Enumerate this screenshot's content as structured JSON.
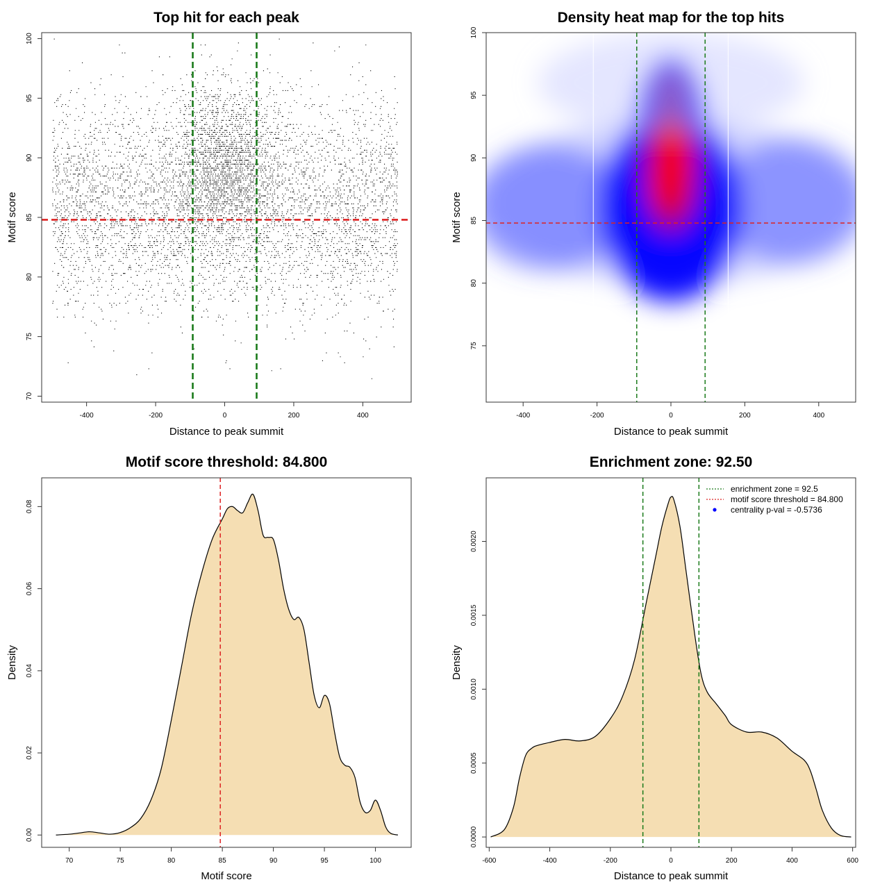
{
  "chart_data": [
    {
      "type": "scatter",
      "title": "Top hit for each peak",
      "xlabel": "Distance to peak summit",
      "ylabel": "Motif score",
      "xlim": [
        -530,
        540
      ],
      "ylim": [
        69.5,
        100.5
      ],
      "xticks": [
        -400,
        -200,
        0,
        200,
        400
      ],
      "yticks": [
        70,
        75,
        80,
        85,
        90,
        95,
        100
      ],
      "xtick_labels": [
        "-400",
        "-200",
        "0",
        "200",
        "400"
      ],
      "ytick_labels": [
        "70",
        "75",
        "80",
        "85",
        "90",
        "95",
        "100"
      ],
      "threshold_line": {
        "axis": "y",
        "value": 84.8,
        "color": "#dd2222",
        "style": "dashed"
      },
      "zone_lines": {
        "axis": "x",
        "values": [
          -92.5,
          92.5
        ],
        "color": "#1a7a1a",
        "style": "dashed"
      },
      "point_color": "#000000",
      "grid": false,
      "points_summary": {
        "count": 7000,
        "x_range": [
          -500,
          500
        ],
        "score_center": 86.5,
        "score_spread": 4.5,
        "central_enrichment": true
      }
    },
    {
      "type": "heatmap",
      "title": "Density heat map for the top hits",
      "xlabel": "Distance to peak summit",
      "ylabel": "Motif score",
      "xlim": [
        -500,
        500
      ],
      "ylim": [
        70.5,
        100
      ],
      "xticks": [
        -400,
        -200,
        0,
        200,
        400
      ],
      "yticks": [
        75,
        80,
        85,
        90,
        95,
        100
      ],
      "xtick_labels": [
        "-400",
        "-200",
        "0",
        "200",
        "400"
      ],
      "ytick_labels": [
        "75",
        "80",
        "85",
        "90",
        "95",
        "100"
      ],
      "threshold_line": {
        "axis": "y",
        "value": 84.8,
        "color": "#dd2222",
        "style": "dashed"
      },
      "zone_lines": {
        "axis": "x",
        "values": [
          -92.5,
          92.5
        ],
        "color": "#1a7a1a",
        "style": "dashed"
      },
      "color_scale": [
        "#ffffff",
        "#0000ff",
        "#ff0000"
      ],
      "grid": false
    },
    {
      "type": "area",
      "title": "Motif score threshold: 84.800",
      "xlabel": "Motif score",
      "ylabel": "Density",
      "xlim": [
        67.3,
        103.5
      ],
      "ylim": [
        -0.003,
        0.087
      ],
      "xticks": [
        70,
        75,
        80,
        85,
        90,
        95,
        100
      ],
      "yticks": [
        0.0,
        0.02,
        0.04,
        0.06,
        0.08
      ],
      "xtick_labels": [
        "70",
        "75",
        "80",
        "85",
        "90",
        "95",
        "100"
      ],
      "ytick_labels": [
        "0.00",
        "0.02",
        "0.04",
        "0.06",
        "0.08"
      ],
      "fill_color": "#f5deb3",
      "threshold_line": {
        "axis": "x",
        "value": 84.8,
        "color": "#dd2222",
        "style": "dashed"
      },
      "x": [
        68.7,
        70,
        71,
        72,
        73,
        74,
        75,
        76,
        77,
        78,
        79,
        80,
        81,
        82,
        83,
        84,
        85,
        85.5,
        86,
        86.5,
        87,
        87.5,
        88,
        88.5,
        89,
        89.5,
        90,
        90.5,
        91,
        91.5,
        92,
        92.5,
        93,
        93.5,
        94,
        94.5,
        95,
        95.5,
        96,
        96.5,
        97,
        97.5,
        98,
        98.5,
        99,
        99.5,
        100,
        100.5,
        101,
        101.5,
        102.2
      ],
      "y": [
        0.0,
        0.0002,
        0.0005,
        0.0008,
        0.0005,
        0.0002,
        0.0006,
        0.0018,
        0.004,
        0.0085,
        0.016,
        0.028,
        0.041,
        0.054,
        0.064,
        0.072,
        0.077,
        0.0795,
        0.08,
        0.079,
        0.0785,
        0.081,
        0.083,
        0.079,
        0.073,
        0.0725,
        0.072,
        0.067,
        0.06,
        0.055,
        0.0525,
        0.053,
        0.05,
        0.042,
        0.034,
        0.031,
        0.034,
        0.032,
        0.025,
        0.019,
        0.017,
        0.0165,
        0.014,
        0.008,
        0.0055,
        0.006,
        0.0085,
        0.006,
        0.002,
        0.0004,
        0.0
      ]
    },
    {
      "type": "area",
      "title": "Enrichment zone: 92.50",
      "xlabel": "Distance to peak summit",
      "ylabel": "Density",
      "xlim": [
        -610,
        610
      ],
      "ylim": [
        -7e-05,
        0.00243
      ],
      "xticks": [
        -600,
        -400,
        -200,
        0,
        200,
        400,
        600
      ],
      "yticks": [
        0.0,
        0.0005,
        0.001,
        0.0015,
        0.002
      ],
      "xtick_labels": [
        "-600",
        "-400",
        "-200",
        "0",
        "200",
        "400",
        "600"
      ],
      "ytick_labels": [
        "0.0000",
        "0.0005",
        "0.0010",
        "0.0015",
        "0.0020"
      ],
      "fill_color": "#f5deb3",
      "zone_lines": {
        "axis": "x",
        "values": [
          -92.5,
          92.5
        ],
        "color": "#1a7a1a",
        "style": "dashed"
      },
      "x": [
        -595,
        -550,
        -520,
        -500,
        -480,
        -460,
        -440,
        -400,
        -350,
        -300,
        -250,
        -200,
        -160,
        -120,
        -80,
        -50,
        -30,
        -10,
        0,
        10,
        30,
        50,
        80,
        100,
        120,
        150,
        180,
        200,
        250,
        300,
        350,
        400,
        440,
        460,
        480,
        500,
        530,
        560,
        595
      ],
      "y": [
        0.0,
        5e-05,
        0.0002,
        0.0004,
        0.00055,
        0.0006,
        0.00062,
        0.00064,
        0.00066,
        0.00065,
        0.00068,
        0.0008,
        0.00095,
        0.0012,
        0.0016,
        0.0019,
        0.0021,
        0.00225,
        0.0023,
        0.00228,
        0.0021,
        0.0018,
        0.00135,
        0.0011,
        0.00098,
        0.0009,
        0.00082,
        0.00076,
        0.00071,
        0.00071,
        0.00067,
        0.00058,
        0.00052,
        0.00045,
        0.00032,
        0.00018,
        6e-05,
        1e-05,
        0.0
      ],
      "legend": {
        "placement": "top-right",
        "entries": [
          {
            "label": "enrichment zone = 92.5",
            "color": "#1a7a1a",
            "marker": "line-dotted"
          },
          {
            "label": "motif score threshold = 84.800",
            "color": "#dd2222",
            "marker": "line-dotted"
          },
          {
            "label": "centrality p-val = -0.5736",
            "color": "#0000ff",
            "marker": "point"
          }
        ]
      }
    }
  ]
}
